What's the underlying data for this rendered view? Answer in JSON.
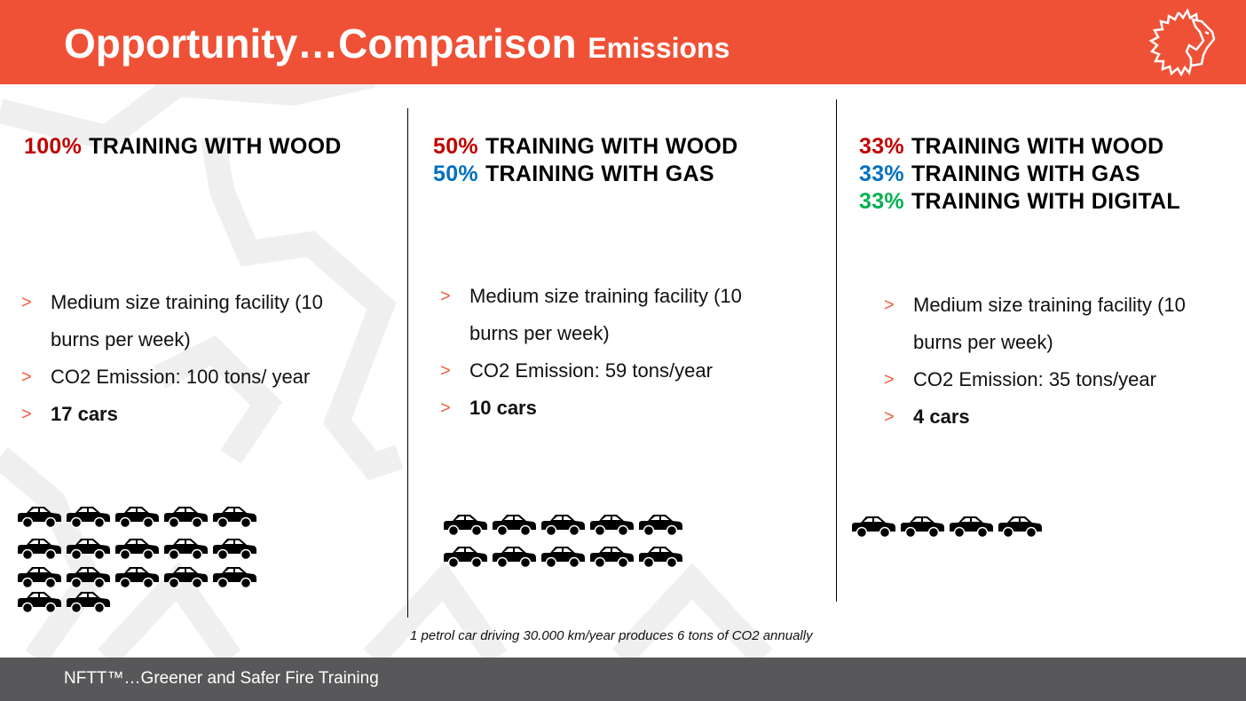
{
  "header": {
    "title_main": "Opportunity…Comparison",
    "title_sub": "Emissions",
    "logo": "lion-logo"
  },
  "colors": {
    "header": "#EF5136",
    "wood": "#C00000",
    "gas": "#0070C0",
    "digital": "#00B050",
    "bullet": "#F05A3C",
    "footer": "#58585A"
  },
  "columns": [
    {
      "headings": [
        {
          "pct": "100%",
          "text": "TRAINING WITH WOOD",
          "color": "#C00000"
        }
      ],
      "bullets": [
        "Medium size training facility (10",
        "burns per week)",
        "CO2 Emission: 100 tons/ year",
        "17 cars"
      ],
      "car_count": 17
    },
    {
      "headings": [
        {
          "pct": "50%",
          "text": "TRAINING WITH WOOD",
          "color": "#C00000"
        },
        {
          "pct": "50%",
          "text": "TRAINING WITH GAS",
          "color": "#0070C0"
        }
      ],
      "bullets": [
        "Medium size training facility (10",
        "burns per week)",
        "CO2 Emission: 59 tons/year",
        "10 cars"
      ],
      "car_count": 10
    },
    {
      "headings": [
        {
          "pct": "33%",
          "text": "TRAINING WITH WOOD",
          "color": "#C00000"
        },
        {
          "pct": "33%",
          "text": "TRAINING WITH GAS",
          "color": "#0070C0"
        },
        {
          "pct": "33%",
          "text": "TRAINING WITH DIGITAL",
          "color": "#00B050"
        }
      ],
      "bullets": [
        "Medium size training facility (10",
        "burns per week)",
        "CO2 Emission: 35 tons/year",
        "4 cars"
      ],
      "car_count": 4
    }
  ],
  "bullet_symbol": ">",
  "note": "1 petrol car driving 30.000 km/year produces 6 tons of CO2 annually",
  "footer": {
    "text": "NFTT™…Greener and Safer Fire Training"
  }
}
